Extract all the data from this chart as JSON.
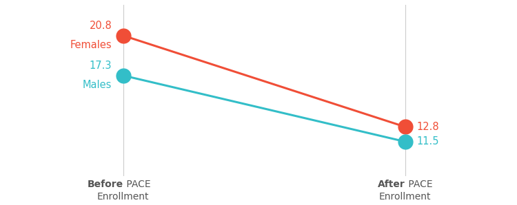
{
  "x_positions": [
    0,
    1
  ],
  "females_values": [
    20.8,
    12.8
  ],
  "males_values": [
    17.3,
    11.5
  ],
  "female_color": "#F04E37",
  "male_color": "#33BEC8",
  "marker_size": 15,
  "line_width": 2.2,
  "background_color": "#ffffff",
  "font_size_data": 10.5,
  "font_size_xlabel": 10,
  "vline_color": "#cccccc",
  "text_color": "#555555"
}
